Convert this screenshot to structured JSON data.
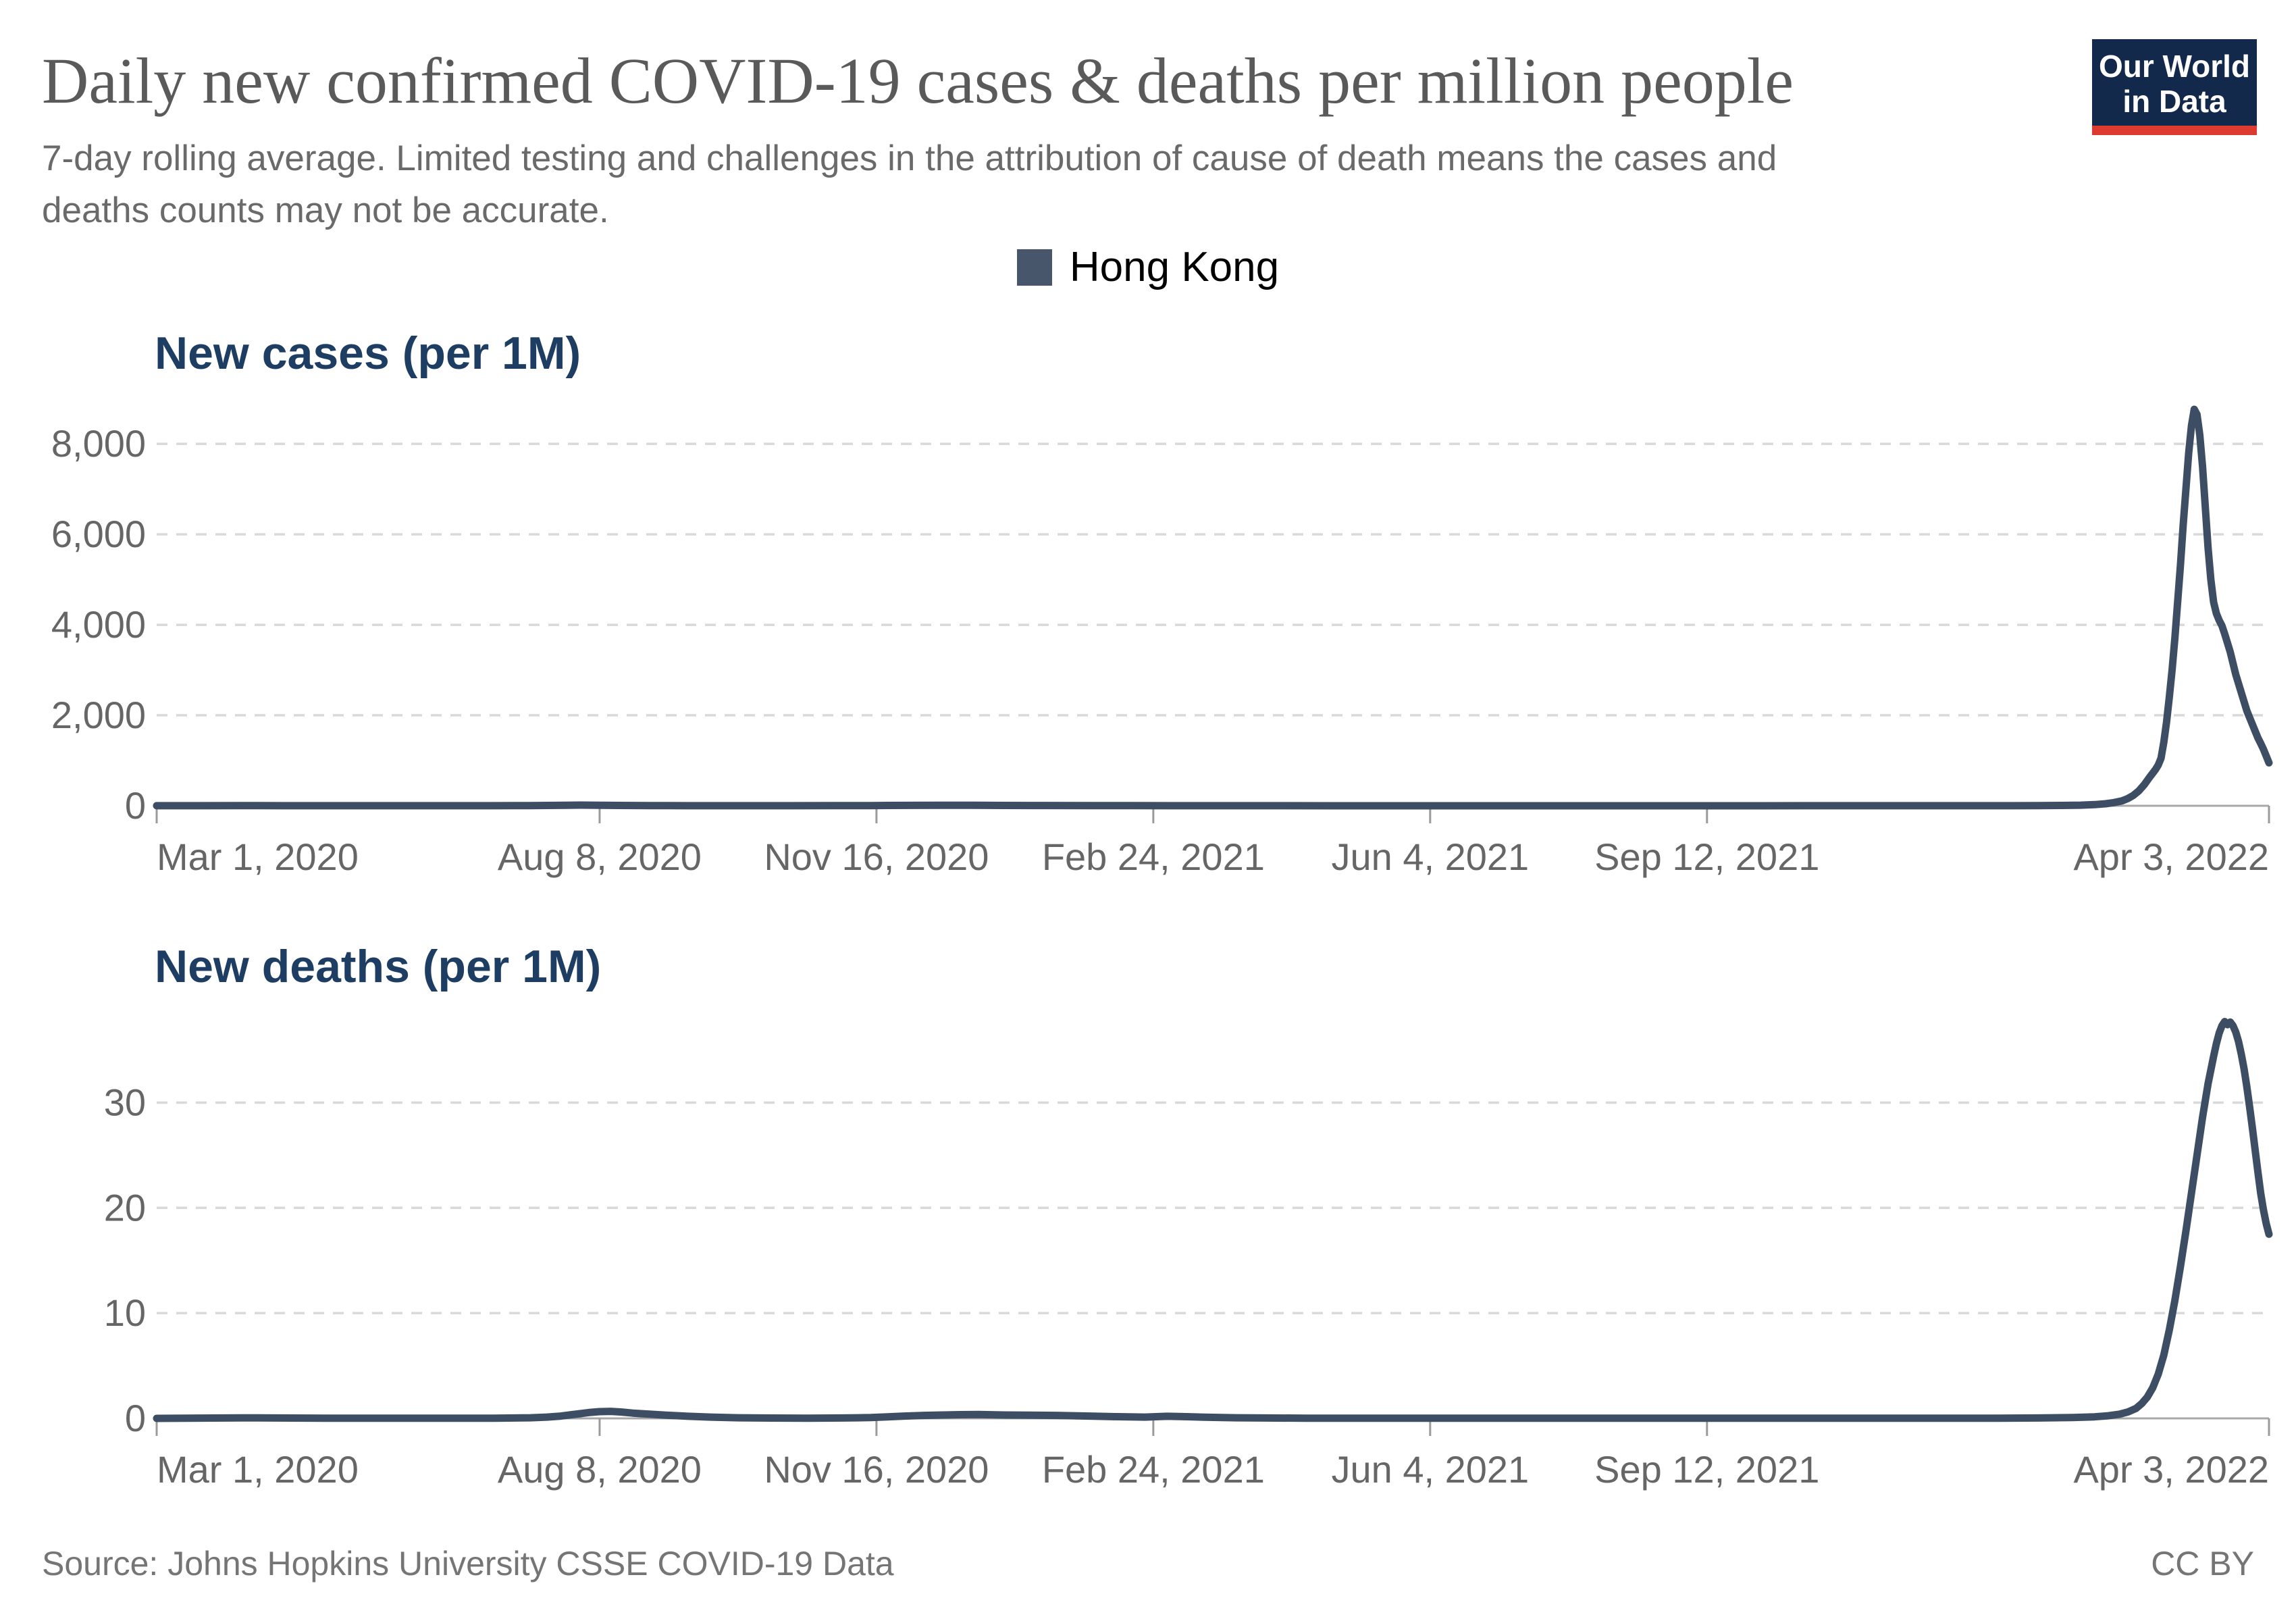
{
  "header": {
    "title": "Daily new confirmed COVID-19 cases & deaths per million people",
    "subtitle_line1": "7-day rolling average. Limited testing and challenges in the attribution of cause of death means the cases and",
    "subtitle_line2": "deaths counts may not be accurate."
  },
  "logo": {
    "line1": "Our World",
    "line2": "in Data",
    "bg_color": "#12294b",
    "accent_color": "#dd3b30"
  },
  "legend": {
    "label": "Hong Kong",
    "swatch_color": "#47566b"
  },
  "footer": {
    "source": "Source: Johns Hopkins University CSSE COVID-19 Data",
    "license": "CC BY"
  },
  "colors": {
    "series_line": "#3d4e64",
    "chart_title": "#1d3d63",
    "axis_text": "#666666",
    "gridline": "#d9d9d9",
    "axis_line": "#a8a8a8",
    "tick_mark": "#9b9b9b"
  },
  "chart_data": [
    {
      "type": "line",
      "title": "New cases (per 1M)",
      "entity": "Hong Kong",
      "grid": true,
      "legend_position": "top-center",
      "xlim_days": [
        0,
        763
      ],
      "ylim": [
        0,
        9450
      ],
      "x_tick_days": [
        0,
        160,
        260,
        360,
        460,
        560,
        763
      ],
      "x_tick_labels": [
        "Mar 1, 2020",
        "Aug 8, 2020",
        "Nov 16, 2020",
        "Feb 24, 2021",
        "Jun 4, 2021",
        "Sep 12, 2021",
        "Apr 3, 2022"
      ],
      "y_ticks": [
        0,
        2000,
        4000,
        6000,
        8000
      ],
      "y_tick_labels": [
        "0",
        "2,000",
        "4,000",
        "6,000",
        "8,000"
      ],
      "points": [
        [
          0,
          1
        ],
        [
          15,
          2
        ],
        [
          31,
          4
        ],
        [
          45,
          2
        ],
        [
          61,
          1
        ],
        [
          92,
          1
        ],
        [
          122,
          2
        ],
        [
          135,
          4
        ],
        [
          141,
          8
        ],
        [
          148,
          12
        ],
        [
          153,
          15
        ],
        [
          160,
          11
        ],
        [
          167,
          7
        ],
        [
          178,
          4
        ],
        [
          184,
          3
        ],
        [
          200,
          2
        ],
        [
          214,
          1
        ],
        [
          230,
          2
        ],
        [
          245,
          3
        ],
        [
          258,
          5
        ],
        [
          264,
          7
        ],
        [
          272,
          9
        ],
        [
          284,
          12
        ],
        [
          295,
          10
        ],
        [
          306,
          8
        ],
        [
          320,
          6
        ],
        [
          337,
          4
        ],
        [
          352,
          3
        ],
        [
          365,
          2
        ],
        [
          380,
          1.5
        ],
        [
          400,
          1
        ],
        [
          426,
          0.7
        ],
        [
          450,
          0.5
        ],
        [
          480,
          0.4
        ],
        [
          510,
          0.4
        ],
        [
          540,
          0.4
        ],
        [
          560,
          0.5
        ],
        [
          580,
          0.6
        ],
        [
          600,
          0.8
        ],
        [
          620,
          0.8
        ],
        [
          640,
          1
        ],
        [
          660,
          1.5
        ],
        [
          671,
          2
        ],
        [
          680,
          4
        ],
        [
          688,
          8
        ],
        [
          695,
          14
        ],
        [
          700,
          25
        ],
        [
          704,
          45
        ],
        [
          707,
          70
        ],
        [
          710,
          110
        ],
        [
          712,
          160
        ],
        [
          714,
          230
        ],
        [
          716,
          330
        ],
        [
          718,
          470
        ],
        [
          720,
          640
        ],
        [
          722,
          800
        ],
        [
          723,
          900
        ],
        [
          724,
          1050
        ],
        [
          725,
          1400
        ],
        [
          726,
          1850
        ],
        [
          727,
          2400
        ],
        [
          728,
          3000
        ],
        [
          729,
          3700
        ],
        [
          730,
          4500
        ],
        [
          731,
          5300
        ],
        [
          732,
          6200
        ],
        [
          733,
          7000
        ],
        [
          734,
          7800
        ],
        [
          735,
          8400
        ],
        [
          736,
          8764
        ],
        [
          737,
          8650
        ],
        [
          738,
          8200
        ],
        [
          739,
          7500
        ],
        [
          740,
          6600
        ],
        [
          741,
          5700
        ],
        [
          742,
          5000
        ],
        [
          743,
          4500
        ],
        [
          744,
          4250
        ],
        [
          745,
          4100
        ],
        [
          746,
          3980
        ],
        [
          747,
          3800
        ],
        [
          748,
          3600
        ],
        [
          749,
          3400
        ],
        [
          750,
          3150
        ],
        [
          751,
          2900
        ],
        [
          752,
          2700
        ],
        [
          753,
          2500
        ],
        [
          754,
          2300
        ],
        [
          755,
          2100
        ],
        [
          756,
          1950
        ],
        [
          757,
          1800
        ],
        [
          758,
          1650
        ],
        [
          759,
          1500
        ],
        [
          760,
          1380
        ],
        [
          761,
          1250
        ],
        [
          762,
          1100
        ],
        [
          763,
          950
        ]
      ]
    },
    {
      "type": "line",
      "title": "New deaths (per 1M)",
      "entity": "Hong Kong",
      "grid": true,
      "legend_position": "top-center",
      "xlim_days": [
        0,
        763
      ],
      "ylim": [
        0,
        38.5
      ],
      "x_tick_days": [
        0,
        160,
        260,
        360,
        460,
        560,
        763
      ],
      "x_tick_labels": [
        "Mar 1, 2020",
        "Aug 8, 2020",
        "Nov 16, 2020",
        "Feb 24, 2021",
        "Jun 4, 2021",
        "Sep 12, 2021",
        "Apr 3, 2022"
      ],
      "y_ticks": [
        0,
        10,
        20,
        30
      ],
      "y_tick_labels": [
        "0",
        "10",
        "20",
        "30"
      ],
      "points": [
        [
          0,
          0
        ],
        [
          31,
          0.05
        ],
        [
          61,
          0.02
        ],
        [
          92,
          0.01
        ],
        [
          122,
          0.02
        ],
        [
          135,
          0.06
        ],
        [
          141,
          0.12
        ],
        [
          146,
          0.22
        ],
        [
          150,
          0.35
        ],
        [
          153,
          0.45
        ],
        [
          156,
          0.55
        ],
        [
          160,
          0.64
        ],
        [
          164,
          0.67
        ],
        [
          168,
          0.6
        ],
        [
          172,
          0.5
        ],
        [
          177,
          0.42
        ],
        [
          184,
          0.3
        ],
        [
          192,
          0.2
        ],
        [
          200,
          0.12
        ],
        [
          210,
          0.06
        ],
        [
          222,
          0.03
        ],
        [
          235,
          0.02
        ],
        [
          248,
          0.04
        ],
        [
          258,
          0.08
        ],
        [
          264,
          0.15
        ],
        [
          270,
          0.22
        ],
        [
          277,
          0.28
        ],
        [
          284,
          0.32
        ],
        [
          290,
          0.35
        ],
        [
          297,
          0.37
        ],
        [
          306,
          0.32
        ],
        [
          315,
          0.3
        ],
        [
          325,
          0.28
        ],
        [
          337,
          0.22
        ],
        [
          347,
          0.16
        ],
        [
          357,
          0.12
        ],
        [
          365,
          0.2
        ],
        [
          372,
          0.16
        ],
        [
          380,
          0.1
        ],
        [
          390,
          0.06
        ],
        [
          400,
          0.04
        ],
        [
          415,
          0.02
        ],
        [
          430,
          0.01
        ],
        [
          460,
          0.01
        ],
        [
          490,
          0.01
        ],
        [
          520,
          0.01
        ],
        [
          550,
          0.01
        ],
        [
          580,
          0.01
        ],
        [
          610,
          0.01
        ],
        [
          640,
          0.01
        ],
        [
          665,
          0.02
        ],
        [
          680,
          0.04
        ],
        [
          692,
          0.08
        ],
        [
          700,
          0.15
        ],
        [
          705,
          0.25
        ],
        [
          709,
          0.4
        ],
        [
          712,
          0.6
        ],
        [
          715,
          0.95
        ],
        [
          717,
          1.4
        ],
        [
          719,
          2
        ],
        [
          721,
          2.9
        ],
        [
          723,
          4.2
        ],
        [
          725,
          6
        ],
        [
          727,
          8.4
        ],
        [
          729,
          11.2
        ],
        [
          731,
          14.4
        ],
        [
          733,
          17.8
        ],
        [
          735,
          21.4
        ],
        [
          737,
          25
        ],
        [
          739,
          28.6
        ],
        [
          741,
          31.8
        ],
        [
          743,
          34.4
        ],
        [
          744,
          35.6
        ],
        [
          745,
          36.6
        ],
        [
          746,
          37.3
        ],
        [
          747,
          37.7
        ],
        [
          748,
          37.4
        ],
        [
          749,
          37.65
        ],
        [
          750,
          37.3
        ],
        [
          751,
          36.7
        ],
        [
          752,
          35.8
        ],
        [
          753,
          34.6
        ],
        [
          754,
          33.2
        ],
        [
          755,
          31.5
        ],
        [
          756,
          29.6
        ],
        [
          757,
          27.6
        ],
        [
          758,
          25.5
        ],
        [
          759,
          23.4
        ],
        [
          760,
          21.4
        ],
        [
          761,
          19.8
        ],
        [
          762,
          18.5
        ],
        [
          763,
          17.5
        ]
      ]
    }
  ]
}
